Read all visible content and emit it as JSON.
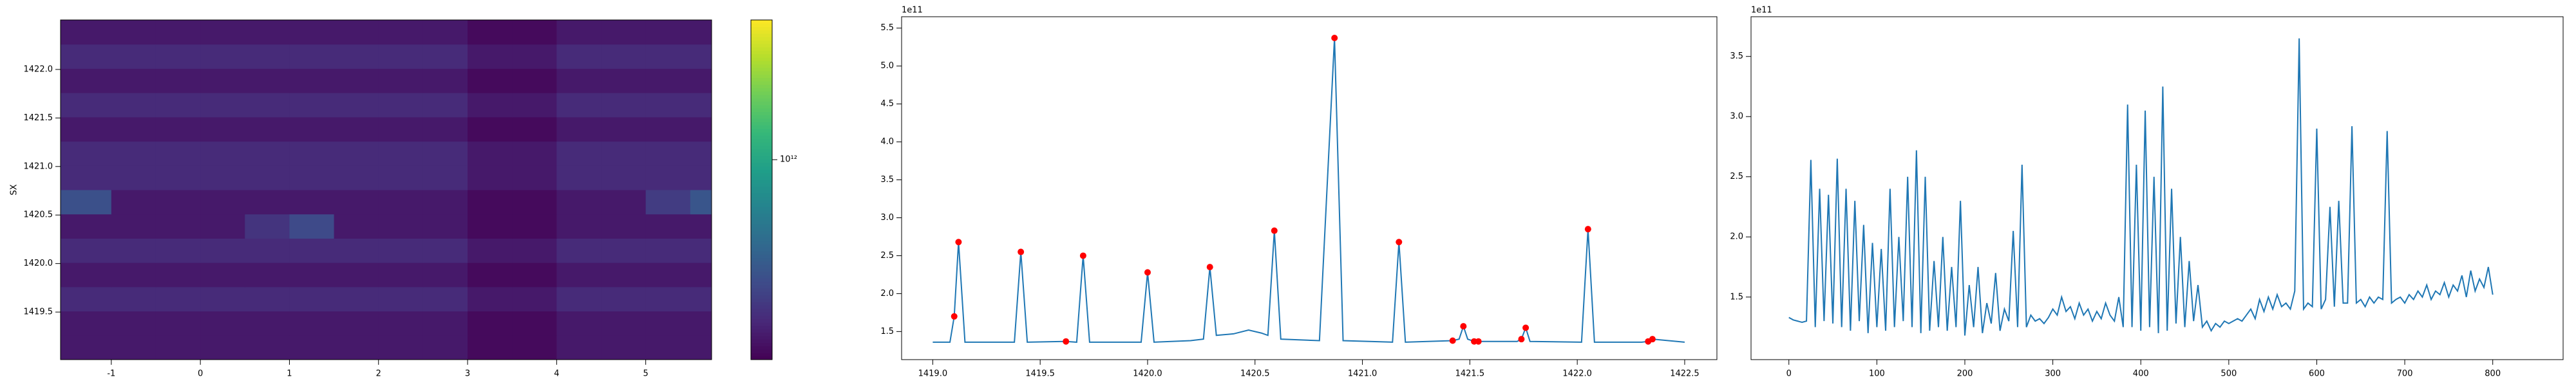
{
  "chart_data": [
    {
      "type": "heatmap",
      "ylabel": "SX",
      "colormap": "viridis",
      "log_color": true,
      "x_edges": [
        -1.57,
        -1,
        -0.5,
        0,
        0.5,
        1,
        1.5,
        2,
        2.5,
        3,
        3.5,
        4,
        4.5,
        5,
        5.5,
        5.74
      ],
      "y_edges": [
        1419.01,
        1419.26,
        1419.51,
        1419.76,
        1420.01,
        1420.26,
        1420.51,
        1420.76,
        1421.01,
        1421.26,
        1421.51,
        1421.76,
        1422.01,
        1422.26,
        1422.51
      ],
      "z": [
        [
          130000000000.0,
          130000000000.0,
          130000000000.0,
          130000000000.0,
          130000000000.0,
          130000000000.0,
          130000000000.0,
          130000000000.0,
          130000000000.0,
          110000000000.0,
          110000000000.0,
          130000000000.0,
          130000000000.0,
          130000000000.0,
          130000000000.0
        ],
        [
          130000000000.0,
          130000000000.0,
          130000000000.0,
          130000000000.0,
          130000000000.0,
          130000000000.0,
          130000000000.0,
          130000000000.0,
          130000000000.0,
          110000000000.0,
          110000000000.0,
          130000000000.0,
          130000000000.0,
          130000000000.0,
          130000000000.0
        ],
        [
          160000000000.0,
          160000000000.0,
          160000000000.0,
          160000000000.0,
          160000000000.0,
          160000000000.0,
          160000000000.0,
          160000000000.0,
          160000000000.0,
          130000000000.0,
          130000000000.0,
          160000000000.0,
          160000000000.0,
          160000000000.0,
          160000000000.0
        ],
        [
          130000000000.0,
          130000000000.0,
          130000000000.0,
          130000000000.0,
          130000000000.0,
          130000000000.0,
          130000000000.0,
          130000000000.0,
          130000000000.0,
          110000000000.0,
          110000000000.0,
          130000000000.0,
          130000000000.0,
          130000000000.0,
          130000000000.0
        ],
        [
          160000000000.0,
          160000000000.0,
          160000000000.0,
          160000000000.0,
          160000000000.0,
          160000000000.0,
          160000000000.0,
          160000000000.0,
          160000000000.0,
          130000000000.0,
          130000000000.0,
          160000000000.0,
          160000000000.0,
          160000000000.0,
          160000000000.0
        ],
        [
          130000000000.0,
          130000000000.0,
          130000000000.0,
          130000000000.0,
          180000000000.0,
          240000000000.0,
          130000000000.0,
          130000000000.0,
          130000000000.0,
          110000000000.0,
          110000000000.0,
          130000000000.0,
          130000000000.0,
          130000000000.0,
          130000000000.0
        ],
        [
          260000000000.0,
          130000000000.0,
          130000000000.0,
          130000000000.0,
          130000000000.0,
          130000000000.0,
          130000000000.0,
          130000000000.0,
          130000000000.0,
          110000000000.0,
          110000000000.0,
          130000000000.0,
          130000000000.0,
          200000000000.0,
          280000000000.0
        ],
        [
          160000000000.0,
          160000000000.0,
          160000000000.0,
          160000000000.0,
          160000000000.0,
          160000000000.0,
          160000000000.0,
          160000000000.0,
          160000000000.0,
          130000000000.0,
          130000000000.0,
          160000000000.0,
          160000000000.0,
          160000000000.0,
          160000000000.0
        ],
        [
          160000000000.0,
          160000000000.0,
          160000000000.0,
          160000000000.0,
          160000000000.0,
          160000000000.0,
          160000000000.0,
          160000000000.0,
          160000000000.0,
          130000000000.0,
          130000000000.0,
          160000000000.0,
          160000000000.0,
          160000000000.0,
          160000000000.0
        ],
        [
          130000000000.0,
          130000000000.0,
          130000000000.0,
          130000000000.0,
          130000000000.0,
          130000000000.0,
          130000000000.0,
          130000000000.0,
          130000000000.0,
          110000000000.0,
          110000000000.0,
          130000000000.0,
          130000000000.0,
          130000000000.0,
          130000000000.0
        ],
        [
          160000000000.0,
          160000000000.0,
          160000000000.0,
          160000000000.0,
          160000000000.0,
          160000000000.0,
          160000000000.0,
          160000000000.0,
          160000000000.0,
          130000000000.0,
          130000000000.0,
          160000000000.0,
          160000000000.0,
          160000000000.0,
          160000000000.0
        ],
        [
          130000000000.0,
          130000000000.0,
          130000000000.0,
          130000000000.0,
          130000000000.0,
          130000000000.0,
          130000000000.0,
          130000000000.0,
          130000000000.0,
          110000000000.0,
          110000000000.0,
          130000000000.0,
          130000000000.0,
          130000000000.0,
          130000000000.0
        ],
        [
          160000000000.0,
          160000000000.0,
          160000000000.0,
          160000000000.0,
          160000000000.0,
          160000000000.0,
          160000000000.0,
          160000000000.0,
          160000000000.0,
          130000000000.0,
          130000000000.0,
          160000000000.0,
          160000000000.0,
          160000000000.0,
          160000000000.0
        ],
        [
          130000000000.0,
          130000000000.0,
          130000000000.0,
          130000000000.0,
          130000000000.0,
          130000000000.0,
          130000000000.0,
          130000000000.0,
          130000000000.0,
          110000000000.0,
          110000000000.0,
          130000000000.0,
          130000000000.0,
          130000000000.0,
          130000000000.0
        ]
      ],
      "xlim": [
        -1.57,
        5.74
      ],
      "ylim": [
        1419.01,
        1422.51
      ],
      "xticks": [
        -1,
        0,
        1,
        2,
        3,
        4,
        5
      ],
      "yticks": [
        1419.5,
        {
          "value": 1420,
          "label": "1420.0"
        },
        1420.5,
        {
          "value": 1421,
          "label": "1421.0"
        },
        1421.5,
        {
          "value": 1422,
          "label": "1422.0"
        }
      ],
      "clim": [
        100000000000.0,
        5000000000000.0
      ],
      "cticks": [
        {
          "value": 1000000000000.0,
          "label": "10¹²"
        }
      ]
    },
    {
      "type": "line",
      "offset_label": "1e11",
      "x": [
        1419.0,
        1419.08,
        1419.1,
        1419.12,
        1419.15,
        1419.38,
        1419.41,
        1419.44,
        1419.62,
        1419.67,
        1419.7,
        1419.73,
        1419.97,
        1420.0,
        1420.03,
        1420.2,
        1420.26,
        1420.29,
        1420.32,
        1420.4,
        1420.47,
        1420.53,
        1420.56,
        1420.59,
        1420.62,
        1420.8,
        1420.87,
        1420.91,
        1421.14,
        1421.17,
        1421.2,
        1421.42,
        1421.45,
        1421.47,
        1421.49,
        1421.52,
        1421.54,
        1421.72,
        1421.74,
        1421.76,
        1421.78,
        1422.02,
        1422.05,
        1422.08,
        1422.3,
        1422.33,
        1422.35,
        1422.5
      ],
      "series": [
        {
          "color": "#1f77b4",
          "values": [
            1.36,
            1.36,
            1.7,
            2.68,
            1.36,
            1.36,
            2.55,
            1.36,
            1.37,
            1.36,
            2.5,
            1.36,
            1.36,
            2.28,
            1.36,
            1.38,
            1.4,
            2.35,
            1.45,
            1.47,
            1.52,
            1.48,
            1.45,
            2.83,
            1.4,
            1.38,
            5.37,
            1.38,
            1.36,
            2.68,
            1.36,
            1.38,
            1.4,
            1.57,
            1.4,
            1.37,
            1.37,
            1.37,
            1.4,
            1.55,
            1.37,
            1.36,
            2.85,
            1.36,
            1.36,
            1.37,
            1.4,
            1.36
          ]
        }
      ],
      "peaks": {
        "color": "#ff0000",
        "x": [
          1419.1,
          1419.12,
          1419.41,
          1419.62,
          1419.7,
          1420.0,
          1420.29,
          1420.59,
          1420.87,
          1421.17,
          1421.42,
          1421.47,
          1421.52,
          1421.54,
          1421.74,
          1421.76,
          1422.05,
          1422.33,
          1422.35
        ],
        "values": [
          1.7,
          2.68,
          2.55,
          1.37,
          2.5,
          2.28,
          2.35,
          2.83,
          5.37,
          2.68,
          1.38,
          1.57,
          1.37,
          1.37,
          1.4,
          1.55,
          2.85,
          1.37,
          1.4
        ]
      },
      "xlim": [
        1418.855,
        1422.65
      ],
      "ylim": [
        1.13,
        5.65
      ],
      "xticks": [
        {
          "value": 1419,
          "label": "1419.0"
        },
        1419.5,
        {
          "value": 1420,
          "label": "1420.0"
        },
        1420.5,
        {
          "value": 1421,
          "label": "1421.0"
        },
        1421.5,
        {
          "value": 1422,
          "label": "1422.0"
        },
        1422.5
      ],
      "yticks": [
        1.5,
        {
          "value": 2,
          "label": "2.0"
        },
        2.5,
        {
          "value": 3,
          "label": "3.0"
        },
        3.5,
        {
          "value": 4,
          "label": "4.0"
        },
        4.5,
        {
          "value": 5,
          "label": "5.0"
        },
        5.5
      ]
    },
    {
      "type": "line",
      "offset_label": "1e11",
      "x": [
        0,
        5,
        10,
        15,
        20,
        25,
        30,
        35,
        40,
        45,
        50,
        55,
        60,
        65,
        70,
        75,
        80,
        85,
        90,
        95,
        100,
        105,
        110,
        115,
        120,
        125,
        130,
        135,
        140,
        145,
        150,
        155,
        160,
        165,
        170,
        175,
        180,
        185,
        190,
        195,
        200,
        205,
        210,
        215,
        220,
        225,
        230,
        235,
        240,
        245,
        250,
        255,
        260,
        265,
        270,
        275,
        280,
        285,
        290,
        295,
        300,
        305,
        310,
        315,
        320,
        325,
        330,
        335,
        340,
        345,
        350,
        355,
        360,
        365,
        370,
        375,
        380,
        385,
        390,
        395,
        400,
        405,
        410,
        415,
        420,
        425,
        430,
        435,
        440,
        445,
        450,
        455,
        460,
        465,
        470,
        475,
        480,
        485,
        490,
        495,
        500,
        505,
        510,
        515,
        520,
        525,
        530,
        535,
        540,
        545,
        550,
        555,
        560,
        565,
        570,
        575,
        580,
        585,
        590,
        595,
        600,
        605,
        610,
        615,
        620,
        625,
        630,
        635,
        640,
        645,
        650,
        655,
        660,
        665,
        670,
        675,
        680,
        685,
        690,
        695,
        700,
        705,
        710,
        715,
        720,
        725,
        730,
        735,
        740,
        745,
        750,
        755,
        760,
        765,
        770,
        775,
        780,
        785,
        790,
        795,
        800
      ],
      "series": [
        {
          "color": "#1f77b4",
          "values": [
            1.33,
            1.31,
            1.3,
            1.29,
            1.3,
            2.64,
            1.25,
            2.4,
            1.3,
            2.35,
            1.28,
            2.65,
            1.25,
            2.4,
            1.22,
            2.3,
            1.3,
            2.1,
            1.2,
            1.95,
            1.25,
            1.9,
            1.22,
            2.4,
            1.25,
            2.0,
            1.3,
            2.5,
            1.25,
            2.72,
            1.2,
            2.5,
            1.22,
            1.8,
            1.25,
            2.0,
            1.22,
            1.75,
            1.25,
            2.3,
            1.18,
            1.6,
            1.25,
            1.75,
            1.2,
            1.45,
            1.28,
            1.7,
            1.22,
            1.4,
            1.3,
            2.05,
            1.25,
            2.6,
            1.25,
            1.35,
            1.3,
            1.32,
            1.28,
            1.33,
            1.4,
            1.35,
            1.5,
            1.38,
            1.42,
            1.32,
            1.45,
            1.35,
            1.4,
            1.3,
            1.38,
            1.32,
            1.45,
            1.35,
            1.3,
            1.5,
            1.25,
            3.1,
            1.25,
            2.6,
            1.22,
            3.05,
            1.25,
            2.5,
            1.2,
            3.25,
            1.22,
            2.4,
            1.28,
            2.0,
            1.25,
            1.8,
            1.3,
            1.6,
            1.25,
            1.3,
            1.22,
            1.28,
            1.25,
            1.3,
            1.28,
            1.3,
            1.32,
            1.3,
            1.35,
            1.4,
            1.32,
            1.48,
            1.38,
            1.5,
            1.4,
            1.52,
            1.42,
            1.45,
            1.4,
            1.55,
            3.65,
            1.4,
            1.45,
            1.42,
            2.9,
            1.4,
            1.48,
            2.25,
            1.42,
            2.3,
            1.45,
            1.45,
            2.92,
            1.45,
            1.48,
            1.42,
            1.5,
            1.45,
            1.5,
            1.48,
            2.88,
            1.45,
            1.48,
            1.5,
            1.45,
            1.52,
            1.48,
            1.55,
            1.5,
            1.6,
            1.48,
            1.55,
            1.52,
            1.62,
            1.5,
            1.6,
            1.55,
            1.68,
            1.5,
            1.72,
            1.55,
            1.65,
            1.58,
            1.75,
            1.52
          ]
        }
      ],
      "xlim": [
        -43,
        880
      ],
      "ylim": [
        0.98,
        3.83
      ],
      "xticks": [
        0,
        100,
        200,
        300,
        400,
        500,
        600,
        700,
        800
      ],
      "yticks": [
        1.5,
        {
          "value": 2,
          "label": "2.0"
        },
        2.5,
        {
          "value": 3,
          "label": "3.0"
        },
        3.5
      ]
    }
  ]
}
